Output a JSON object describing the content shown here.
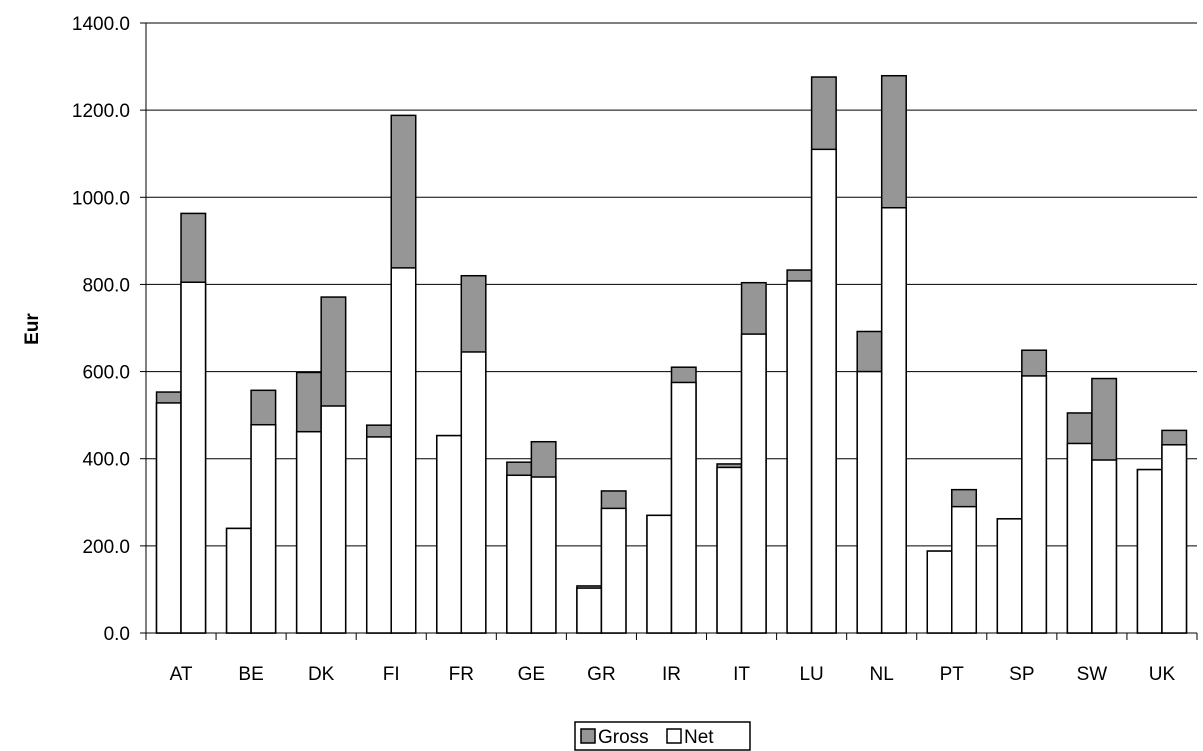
{
  "chart_data": {
    "type": "bar",
    "stacked": true,
    "bars_per_category": 2,
    "title": "",
    "xlabel": "",
    "ylabel": "Eur",
    "ylim": [
      0,
      1400
    ],
    "yticks": [
      "0.0",
      "200.0",
      "400.0",
      "600.0",
      "800.0",
      "1000.0",
      "1200.0",
      "1400.0"
    ],
    "grid": true,
    "legend_position": "bottom",
    "categories": [
      "AT",
      "BE",
      "DK",
      "FI",
      "FR",
      "GE",
      "GR",
      "IR",
      "IT",
      "LU",
      "NL",
      "PT",
      "SP",
      "SW",
      "UK"
    ],
    "series": [
      {
        "name": "Net",
        "color": "#ffffff",
        "values": [
          [
            528,
            805
          ],
          [
            240,
            478
          ],
          [
            462,
            521
          ],
          [
            450,
            838
          ],
          [
            453,
            645
          ],
          [
            362,
            358
          ],
          [
            103,
            286
          ],
          [
            270,
            575
          ],
          [
            380,
            686
          ],
          [
            808,
            1110
          ],
          [
            600,
            976
          ],
          [
            188,
            290
          ],
          [
            262,
            590
          ],
          [
            435,
            397
          ],
          [
            375,
            432
          ]
        ]
      },
      {
        "name": "Gross",
        "color": "#969696",
        "values": [
          [
            553,
            963
          ],
          [
            240,
            557
          ],
          [
            598,
            771
          ],
          [
            477,
            1188
          ],
          [
            453,
            820
          ],
          [
            392,
            439
          ],
          [
            108,
            326
          ],
          [
            270,
            610
          ],
          [
            388,
            804
          ],
          [
            833,
            1276
          ],
          [
            692,
            1279
          ],
          [
            188,
            329
          ],
          [
            262,
            649
          ],
          [
            505,
            584
          ],
          [
            375,
            465
          ]
        ]
      }
    ]
  }
}
